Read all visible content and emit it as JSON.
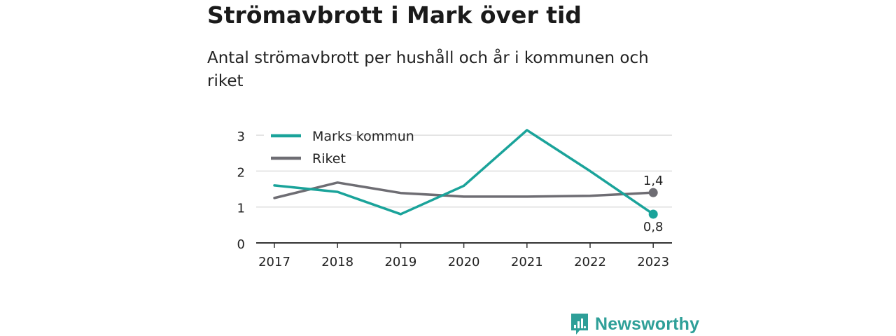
{
  "header": {
    "title": "Strömavbrott i Mark över tid",
    "subtitle": "Antal strömavbrott per hushåll och år i kommunen och riket"
  },
  "brand": {
    "name": "Newsworthy",
    "logo_icon": "bar-chart-speech-bubble-icon"
  },
  "colors": {
    "marks": "#1aa39a",
    "riket": "#6e6d73",
    "grid": "#dedede",
    "axis": "#333333"
  },
  "chart_data": {
    "type": "line",
    "x": [
      "2017",
      "2018",
      "2019",
      "2020",
      "2021",
      "2022",
      "2023"
    ],
    "ylim": [
      0,
      3
    ],
    "yticks": [
      "0",
      "1",
      "2",
      "3"
    ],
    "grid": true,
    "legend_position": "top-left",
    "series": [
      {
        "name": "Marks kommun",
        "color": "#1aa39a",
        "values": [
          1.6,
          1.42,
          0.8,
          1.59,
          3.14,
          2.0,
          0.8
        ],
        "end_label": "0,8"
      },
      {
        "name": "Riket",
        "color": "#6e6d73",
        "values": [
          1.25,
          1.68,
          1.39,
          1.29,
          1.29,
          1.31,
          1.4
        ],
        "end_label": "1,4"
      }
    ]
  }
}
